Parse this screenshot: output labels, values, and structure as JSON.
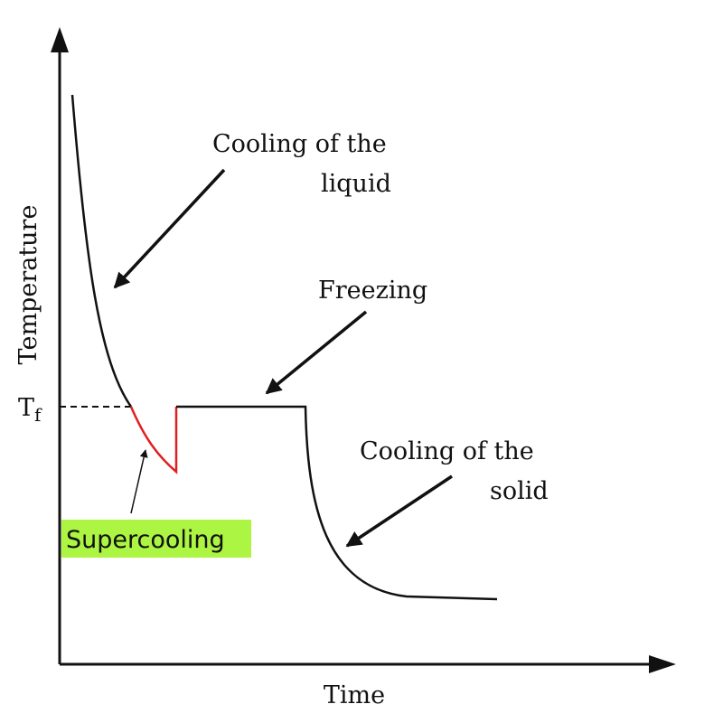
{
  "axes": {
    "y_label": "Temperature",
    "x_label": "Time",
    "reference": {
      "symbol": "T",
      "subscript": "f"
    }
  },
  "annotations": {
    "liquid": [
      "Cooling of the",
      "liquid"
    ],
    "freezing": "Freezing",
    "solid": [
      "Cooling of the",
      "solid"
    ],
    "supercooling": "Supercooling"
  }
}
